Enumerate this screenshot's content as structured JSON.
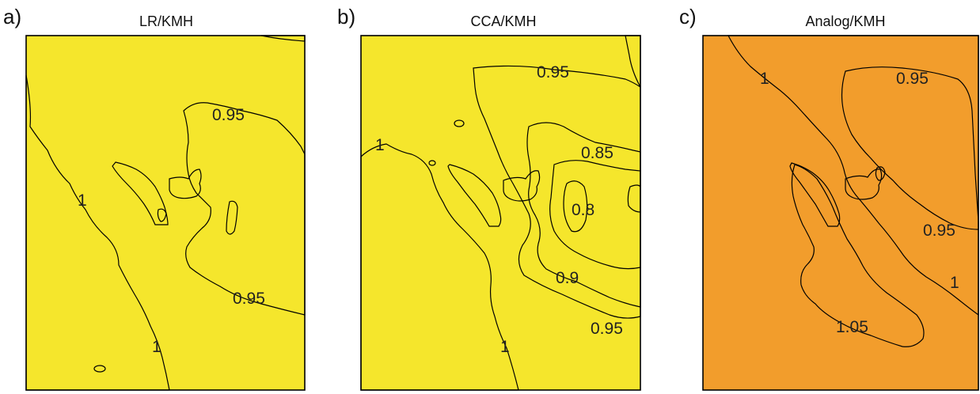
{
  "colors": {
    "orange": "#f29d2c",
    "yellow": "#f5e62c",
    "green": "#8fcd8f",
    "light_blue": "#15b7ea",
    "mid_blue": "#1485cf",
    "dark_blue": "#2a3a8f",
    "red": "#e8333a",
    "land": "#ffffff"
  },
  "panels": [
    {
      "letter": "a)",
      "title": "LR/KMH",
      "labels": [
        "0.95",
        "1",
        "0.95",
        "1"
      ]
    },
    {
      "letter": "b)",
      "title": "CCA/KMH",
      "labels": [
        "0.95",
        "1",
        "0.85",
        "0.8",
        "0.9",
        "0.95",
        "1"
      ]
    },
    {
      "letter": "c)",
      "title": "Analog/KMH",
      "labels": [
        "1",
        "0.95",
        "0.95",
        "1",
        "1.05"
      ]
    }
  ]
}
